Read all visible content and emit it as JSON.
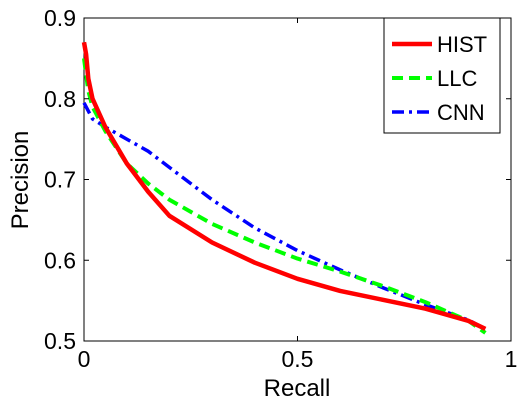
{
  "chart_data": {
    "type": "line",
    "title": "",
    "xlabel": "Recall",
    "ylabel": "Precision",
    "xlim": [
      0,
      1
    ],
    "ylim": [
      0.5,
      0.9
    ],
    "xticks": [
      0,
      0.5,
      1
    ],
    "xtick_labels": [
      "0",
      "0.5",
      "1"
    ],
    "yticks": [
      0.5,
      0.6,
      0.7,
      0.8,
      0.9
    ],
    "ytick_labels": [
      "0.5",
      "0.6",
      "0.7",
      "0.8",
      "0.9"
    ],
    "grid": false,
    "legend_position": "top-right",
    "series": [
      {
        "name": "HIST",
        "color": "#ff0000",
        "style": "solid",
        "x": [
          0.0,
          0.005,
          0.01,
          0.02,
          0.05,
          0.1,
          0.15,
          0.2,
          0.3,
          0.4,
          0.5,
          0.6,
          0.7,
          0.8,
          0.9,
          0.94
        ],
        "y": [
          0.87,
          0.855,
          0.825,
          0.8,
          0.765,
          0.72,
          0.685,
          0.655,
          0.622,
          0.597,
          0.577,
          0.562,
          0.551,
          0.54,
          0.525,
          0.515
        ]
      },
      {
        "name": "LLC",
        "color": "#00ff00",
        "style": "dashed",
        "x": [
          0.0,
          0.005,
          0.01,
          0.02,
          0.05,
          0.1,
          0.15,
          0.2,
          0.3,
          0.4,
          0.5,
          0.6,
          0.7,
          0.8,
          0.9,
          0.94
        ],
        "y": [
          0.85,
          0.83,
          0.81,
          0.79,
          0.76,
          0.72,
          0.695,
          0.675,
          0.645,
          0.622,
          0.602,
          0.586,
          0.568,
          0.548,
          0.525,
          0.51
        ]
      },
      {
        "name": "CNN",
        "color": "#0000ff",
        "style": "dashdot",
        "x": [
          0.0,
          0.02,
          0.05,
          0.1,
          0.15,
          0.2,
          0.3,
          0.4,
          0.5,
          0.6,
          0.7,
          0.8,
          0.9,
          0.94
        ],
        "y": [
          0.795,
          0.775,
          0.765,
          0.75,
          0.735,
          0.715,
          0.675,
          0.64,
          0.612,
          0.588,
          0.566,
          0.545,
          0.526,
          0.515
        ]
      }
    ]
  }
}
